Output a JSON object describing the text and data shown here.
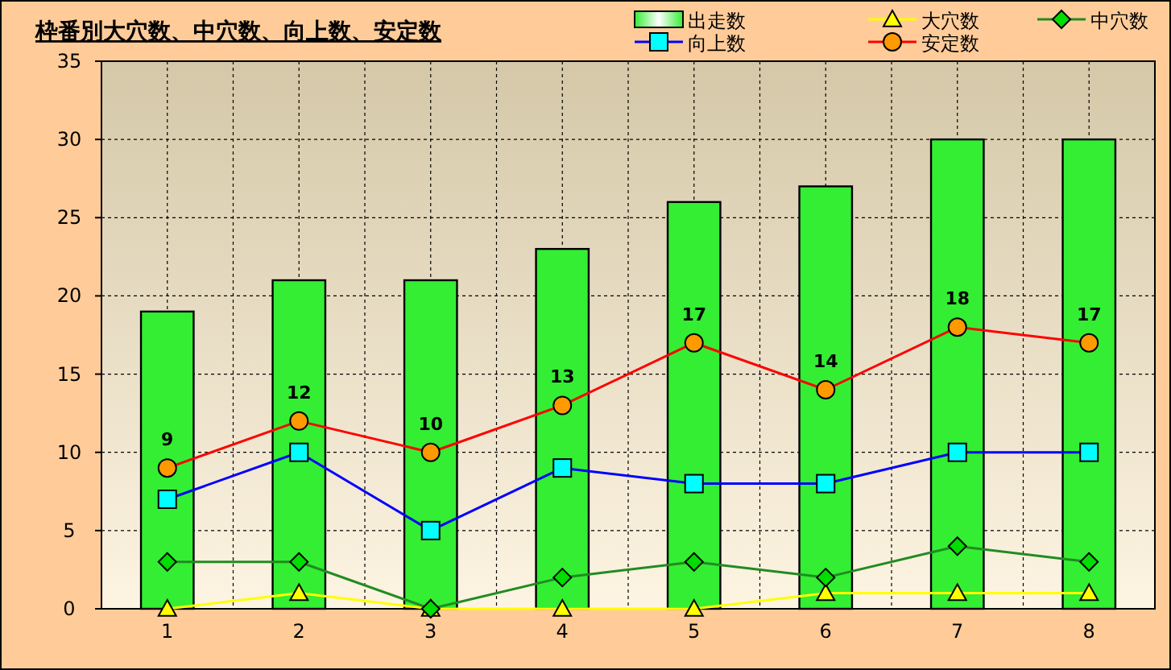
{
  "chart_data": {
    "type": "bar",
    "title": "枠番別大穴数、中穴数、向上数、安定数",
    "categories": [
      "1",
      "2",
      "3",
      "4",
      "5",
      "6",
      "7",
      "8"
    ],
    "ylim": [
      0,
      35
    ],
    "yticks": [
      0,
      5,
      10,
      15,
      20,
      25,
      30,
      35
    ],
    "grid": true,
    "legend": "top right",
    "series": [
      {
        "name": "出走数",
        "color": "#33ee33",
        "values": [
          19,
          21,
          21,
          23,
          26,
          27,
          30,
          30
        ]
      },
      {
        "name": "大穴数",
        "type": "line",
        "color": "#ffff00",
        "marker": "triangle",
        "values": [
          0,
          1,
          0,
          0,
          0,
          1,
          1,
          1
        ]
      },
      {
        "name": "中穴数",
        "type": "line",
        "color": "#228b22",
        "marker": "diamond",
        "values": [
          3,
          3,
          0,
          2,
          3,
          2,
          4,
          3
        ]
      },
      {
        "name": "向上数",
        "type": "line",
        "color": "#0000ff",
        "marker": "square",
        "values": [
          7,
          10,
          5,
          9,
          8,
          8,
          10,
          10
        ]
      },
      {
        "name": "安定数",
        "type": "line",
        "color": "#ff0000",
        "marker": "circle",
        "values": [
          9,
          12,
          10,
          13,
          17,
          14,
          18,
          17
        ],
        "value_labels": [
          "9",
          "12",
          "10",
          "13",
          "17",
          "14",
          "18",
          "17"
        ]
      }
    ]
  }
}
